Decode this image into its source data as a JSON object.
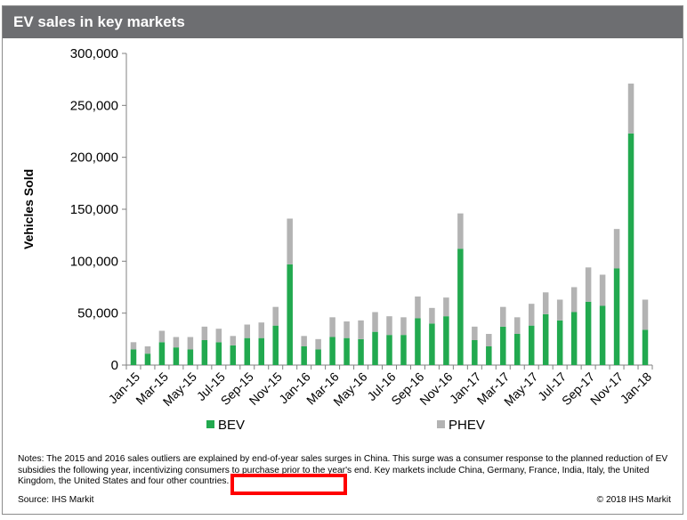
{
  "title": "EV sales in key markets",
  "colors": {
    "bev": "#22a94f",
    "phev": "#b3b3b3",
    "title_bg": "#6d6e71",
    "highlight": "#ff0000"
  },
  "chart_data": {
    "type": "bar",
    "stacked": true,
    "ylabel": "Vehicles Sold",
    "xlabel": "",
    "ylim": [
      0,
      300000
    ],
    "yticks": [
      "0",
      "50,000",
      "100,000",
      "150,000",
      "200,000",
      "250,000",
      "300,000"
    ],
    "ytick_values": [
      0,
      50000,
      100000,
      150000,
      200000,
      250000,
      300000
    ],
    "grid": false,
    "legend": "bottom",
    "categories": [
      "Jan-15",
      "Feb-15",
      "Mar-15",
      "Apr-15",
      "May-15",
      "Jun-15",
      "Jul-15",
      "Aug-15",
      "Sep-15",
      "Oct-15",
      "Nov-15",
      "Dec-15",
      "Jan-16",
      "Feb-16",
      "Mar-16",
      "Apr-16",
      "May-16",
      "Jun-16",
      "Jul-16",
      "Aug-16",
      "Sep-16",
      "Oct-16",
      "Nov-16",
      "Dec-16",
      "Jan-17",
      "Feb-17",
      "Mar-17",
      "Apr-17",
      "May-17",
      "Jun-17",
      "Jul-17",
      "Aug-17",
      "Sep-17",
      "Oct-17",
      "Nov-17",
      "Dec-17",
      "Jan-18"
    ],
    "xtick_labels": [
      "Jan-15",
      "Mar-15",
      "May-15",
      "Jul-15",
      "Sep-15",
      "Nov-15",
      "Jan-16",
      "Mar-16",
      "May-16",
      "Jul-16",
      "Sep-16",
      "Nov-16",
      "Jan-17",
      "Mar-17",
      "May-17",
      "Jul-17",
      "Sep-17",
      "Nov-17",
      "Jan-18"
    ],
    "series": [
      {
        "name": "BEV",
        "values": [
          15000,
          11000,
          22000,
          17000,
          15000,
          24000,
          22000,
          19000,
          26000,
          26000,
          38000,
          97000,
          18000,
          15000,
          27000,
          26000,
          25000,
          32000,
          29000,
          29000,
          45000,
          40000,
          47000,
          112000,
          24000,
          18000,
          37000,
          30000,
          38000,
          49000,
          43000,
          51000,
          61000,
          57000,
          93000,
          223000,
          34000
        ]
      },
      {
        "name": "PHEV",
        "values": [
          7000,
          7000,
          11000,
          10000,
          12000,
          13000,
          13000,
          9000,
          13000,
          15000,
          18000,
          44000,
          10000,
          10000,
          19000,
          16000,
          18000,
          19000,
          18000,
          17000,
          21000,
          15000,
          18000,
          34000,
          13000,
          12000,
          19000,
          16000,
          21000,
          21000,
          20000,
          24000,
          33000,
          30000,
          38000,
          48000,
          29000
        ]
      }
    ]
  },
  "notes": "Notes: The 2015 and 2016 sales outliers are explained by end-of-year sales surges in China. This surge was a consumer response to the planned reduction of EV subsidies the following year, incentivizing consumers to purchase prior to the year's end. Key markets include China, Germany, France, India, Italy, the United Kingdom, the United States and four other countries.",
  "source": "Source: IHS Markit",
  "copyright": "© 2018 IHS Markit"
}
